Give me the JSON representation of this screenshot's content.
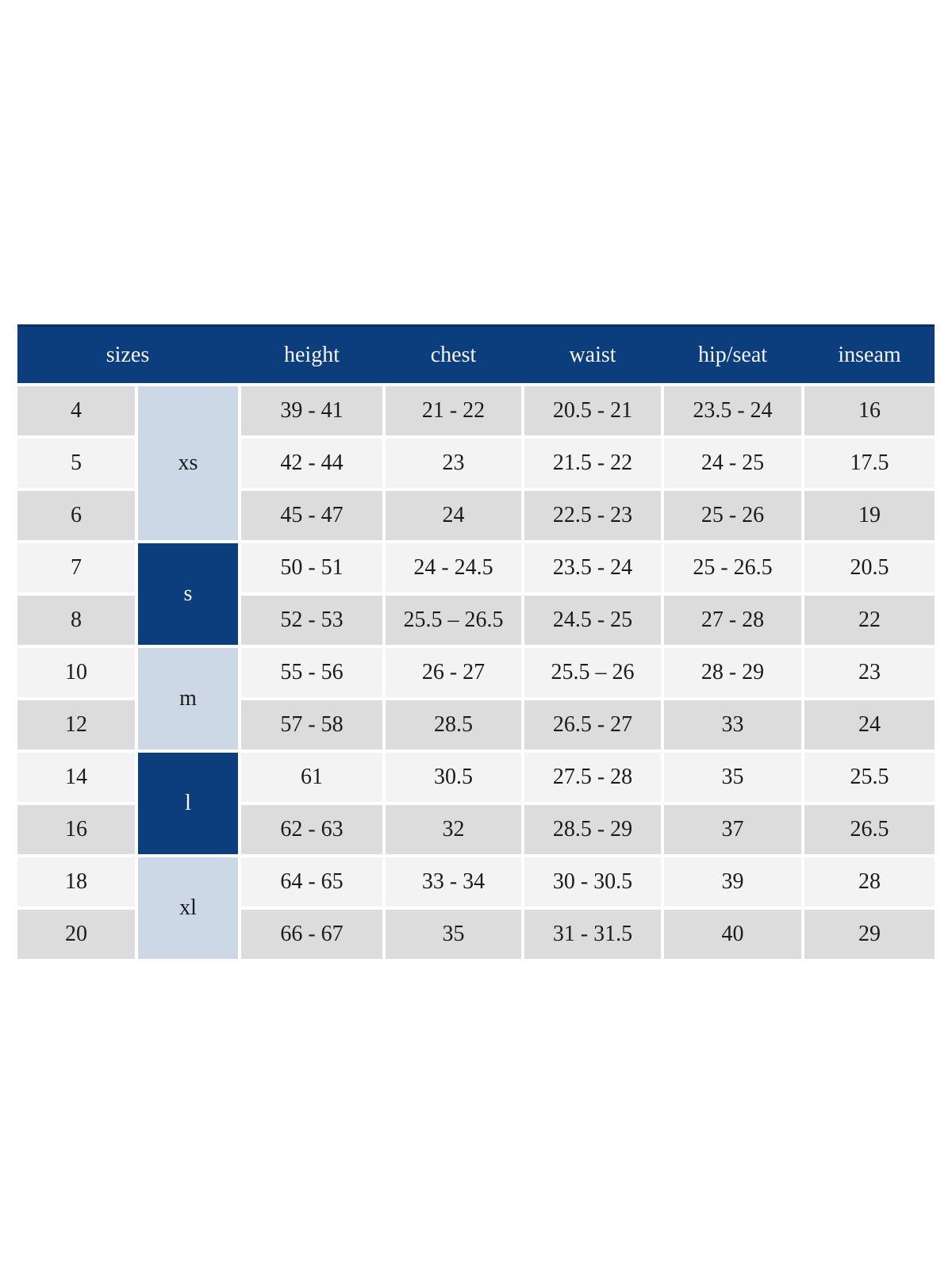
{
  "table": {
    "colors": {
      "header_bg": "#0c3e7e",
      "header_edge": "#0a3166",
      "header_text": "#f5f4f1",
      "group_light_bg": "#ccd8e6",
      "group_dark_bg": "#0c3e7e",
      "row_gray": "#dcdcdc",
      "row_light": "#f3f3f3",
      "cell_text": "#1b1b1b"
    },
    "headers": [
      "sizes",
      "height",
      "chest",
      "waist",
      "hip/seat",
      "inseam"
    ],
    "groups": [
      {
        "label": "xs",
        "tone": "light",
        "row_span": 3
      },
      {
        "label": "s",
        "tone": "dark",
        "row_span": 2
      },
      {
        "label": "m",
        "tone": "light",
        "row_span": 2
      },
      {
        "label": "l",
        "tone": "dark",
        "row_span": 2
      },
      {
        "label": "xl",
        "tone": "light",
        "row_span": 2
      }
    ],
    "rows": [
      {
        "size": "4",
        "group": "xs",
        "height": "39 - 41",
        "chest": "21 - 22",
        "waist": "20.5 - 21",
        "hip_seat": "23.5 - 24",
        "inseam": "16"
      },
      {
        "size": "5",
        "group": "xs",
        "height": "42 - 44",
        "chest": "23",
        "waist": "21.5 - 22",
        "hip_seat": "24 - 25",
        "inseam": "17.5"
      },
      {
        "size": "6",
        "group": "xs",
        "height": "45 - 47",
        "chest": "24",
        "waist": "22.5 - 23",
        "hip_seat": "25 - 26",
        "inseam": "19"
      },
      {
        "size": "7",
        "group": "s",
        "height": "50 - 51",
        "chest": "24 - 24.5",
        "waist": "23.5 - 24",
        "hip_seat": "25 - 26.5",
        "inseam": "20.5"
      },
      {
        "size": "8",
        "group": "s",
        "height": "52 - 53",
        "chest": "25.5 – 26.5",
        "waist": "24.5 - 25",
        "hip_seat": "27 - 28",
        "inseam": "22"
      },
      {
        "size": "10",
        "group": "m",
        "height": "55 - 56",
        "chest": "26 - 27",
        "waist": "25.5 – 26",
        "hip_seat": "28 - 29",
        "inseam": "23"
      },
      {
        "size": "12",
        "group": "m",
        "height": "57 - 58",
        "chest": "28.5",
        "waist": "26.5 - 27",
        "hip_seat": "33",
        "inseam": "24"
      },
      {
        "size": "14",
        "group": "l",
        "height": "61",
        "chest": "30.5",
        "waist": "27.5 - 28",
        "hip_seat": "35",
        "inseam": "25.5"
      },
      {
        "size": "16",
        "group": "l",
        "height": "62 - 63",
        "chest": "32",
        "waist": "28.5 - 29",
        "hip_seat": "37",
        "inseam": "26.5"
      },
      {
        "size": "18",
        "group": "xl",
        "height": "64 - 65",
        "chest": "33 - 34",
        "waist": "30 - 30.5",
        "hip_seat": "39",
        "inseam": "28"
      },
      {
        "size": "20",
        "group": "xl",
        "height": "66 - 67",
        "chest": "35",
        "waist": "31 - 31.5",
        "hip_seat": "40",
        "inseam": "29"
      }
    ]
  },
  "chart_data": {
    "type": "table",
    "title": "",
    "columns": [
      "sizes (number)",
      "sizes (letter)",
      "height",
      "chest",
      "waist",
      "hip/seat",
      "inseam"
    ],
    "rows": [
      [
        "4",
        "xs",
        "39 - 41",
        "21 - 22",
        "20.5 - 21",
        "23.5 - 24",
        "16"
      ],
      [
        "5",
        "xs",
        "42 - 44",
        "23",
        "21.5 - 22",
        "24 - 25",
        "17.5"
      ],
      [
        "6",
        "xs",
        "45 - 47",
        "24",
        "22.5 - 23",
        "25 - 26",
        "19"
      ],
      [
        "7",
        "s",
        "50 - 51",
        "24 - 24.5",
        "23.5 - 24",
        "25 - 26.5",
        "20.5"
      ],
      [
        "8",
        "s",
        "52 - 53",
        "25.5 – 26.5",
        "24.5 - 25",
        "27 - 28",
        "22"
      ],
      [
        "10",
        "m",
        "55 - 56",
        "26 - 27",
        "25.5 – 26",
        "28 - 29",
        "23"
      ],
      [
        "12",
        "m",
        "57 - 58",
        "28.5",
        "26.5 - 27",
        "33",
        "24"
      ],
      [
        "14",
        "l",
        "61",
        "30.5",
        "27.5 - 28",
        "35",
        "25.5"
      ],
      [
        "16",
        "l",
        "62 - 63",
        "32",
        "28.5 - 29",
        "37",
        "26.5"
      ],
      [
        "18",
        "xl",
        "64 - 65",
        "33 - 34",
        "30 - 30.5",
        "39",
        "28"
      ],
      [
        "20",
        "xl",
        "66 - 67",
        "35",
        "31 - 31.5",
        "40",
        "29"
      ]
    ]
  }
}
